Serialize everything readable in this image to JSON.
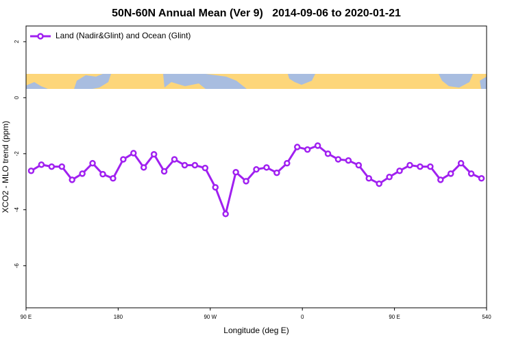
{
  "chart_data": {
    "type": "line",
    "title": "50N-60N Annual Mean (Ver 9)   2014-09-06 to 2020-01-21",
    "xlabel": "Longitude (deg E)",
    "ylabel": "XCO2 - MLO trend (ppm)",
    "x": [
      95,
      105,
      115,
      125,
      135,
      145,
      155,
      165,
      175,
      185,
      195,
      205,
      215,
      225,
      235,
      245,
      255,
      265,
      275,
      285,
      295,
      305,
      315,
      325,
      335,
      345,
      355,
      365,
      375,
      385,
      395,
      405,
      415,
      425,
      435,
      445,
      455,
      465,
      475,
      485,
      495,
      505,
      515,
      525,
      535
    ],
    "series": [
      {
        "name": "Land (Nadir&Glint) and Ocean (Glint)",
        "color": "#a020f0",
        "values": [
          -2.61,
          -2.39,
          -2.46,
          -2.46,
          -2.93,
          -2.71,
          -2.34,
          -2.73,
          -2.88,
          -2.2,
          -1.98,
          -2.49,
          -2.02,
          -2.63,
          -2.2,
          -2.41,
          -2.41,
          -2.51,
          -3.2,
          -4.15,
          -2.66,
          -2.98,
          -2.56,
          -2.49,
          -2.68,
          -2.34,
          -1.76,
          -1.85,
          -1.71,
          -2.0,
          -2.2,
          -2.24,
          -2.41,
          -2.88,
          -3.07,
          -2.83,
          -2.61,
          -2.41,
          -2.46,
          -2.46,
          -2.93,
          -2.71,
          -2.34,
          -2.71,
          -2.88
        ]
      }
    ],
    "xlim": [
      90,
      540
    ],
    "xticks": [
      {
        "value": 90,
        "label": "90 E"
      },
      180,
      {
        "value": 270,
        "label": "90 W"
      },
      {
        "value": 360,
        "label": "0"
      },
      {
        "value": 450,
        "label": "90 E"
      },
      540
    ],
    "ylim": [
      -7.5,
      2.56
    ],
    "yticks": [
      -6,
      -4,
      -2,
      0,
      2
    ],
    "legend": "upper left",
    "grid": false
  }
}
